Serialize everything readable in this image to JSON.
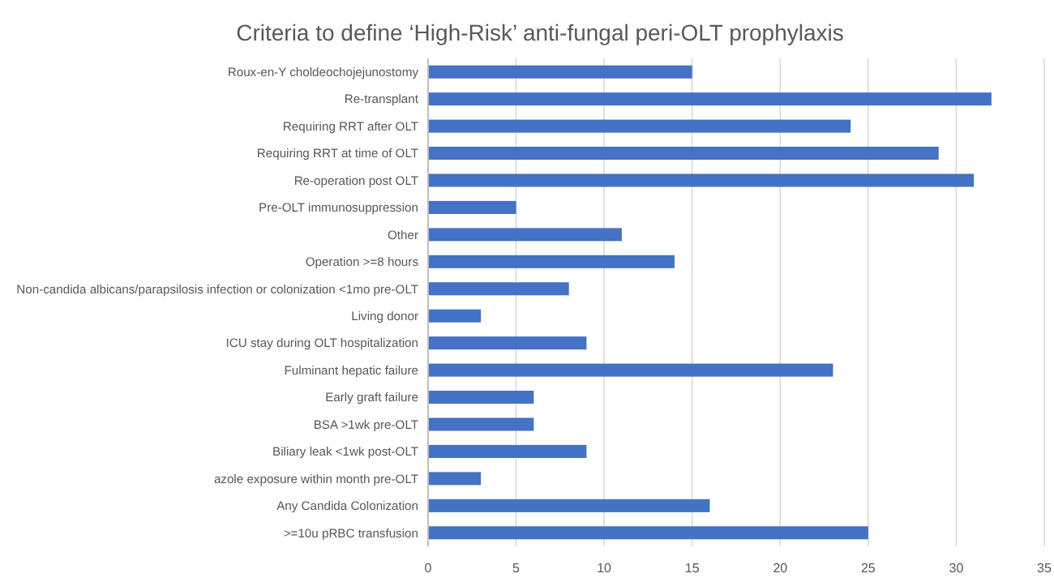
{
  "chart_data": {
    "type": "bar",
    "orientation": "horizontal",
    "title": "Criteria to define ‘High-Risk’ anti-fungal peri-OLT prophylaxis",
    "categories": [
      "Roux-en-Y choldeochojejunostomy",
      "Re-transplant",
      "Requiring RRT after OLT",
      "Requiring RRT at time of OLT",
      "Re-operation post OLT",
      "Pre-OLT immunosuppression",
      "Other",
      "Operation >=8 hours",
      "Non-candida albicans/parapsilosis infection or colonization <1mo pre-OLT",
      "Living donor",
      "ICU stay during OLT hospitalization",
      "Fulminant hepatic failure",
      "Early graft failure",
      "BSA >1wk pre-OLT",
      "Biliary leak <1wk post-OLT",
      "azole exposure within month pre-OLT",
      "Any Candida Colonization",
      ">=10u pRBC transfusion"
    ],
    "values": [
      15,
      32,
      24,
      29,
      31,
      5,
      11,
      14,
      8,
      3,
      9,
      23,
      6,
      6,
      9,
      3,
      16,
      25
    ],
    "color": "#4472c4",
    "xlim": [
      0,
      35
    ],
    "xticks": [
      0,
      5,
      10,
      15,
      20,
      25,
      30,
      35
    ],
    "grid": "x"
  }
}
